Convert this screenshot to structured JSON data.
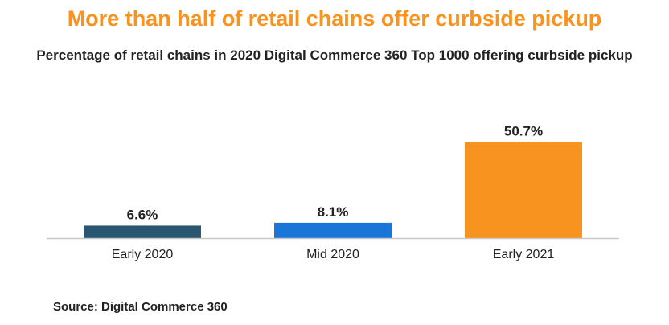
{
  "title": "More than half of retail chains offer curbside pickup",
  "subtitle": "Percentage of retail chains in 2020 Digital Commerce 360 Top 1000 offering curbside pickup",
  "source": "Source: Digital Commerce 360",
  "colors": {
    "title": "#f7931e",
    "axis": "#c8c8c8",
    "text": "#222222"
  },
  "chart_data": {
    "type": "bar",
    "title": "More than half of retail chains offer curbside pickup",
    "subtitle": "Percentage of retail chains in 2020 Digital Commerce 360 Top 1000 offering curbside pickup",
    "categories": [
      "Early 2020",
      "Mid 2020",
      "Early 2021"
    ],
    "values": [
      6.6,
      8.1,
      50.7
    ],
    "value_labels": [
      "6.6%",
      "8.1%",
      "50.7%"
    ],
    "bar_colors": [
      "#2b5670",
      "#1a75d9",
      "#f7931e"
    ],
    "xlabel": "",
    "ylabel": "",
    "unit": "%",
    "grid": false,
    "legend": "none"
  }
}
